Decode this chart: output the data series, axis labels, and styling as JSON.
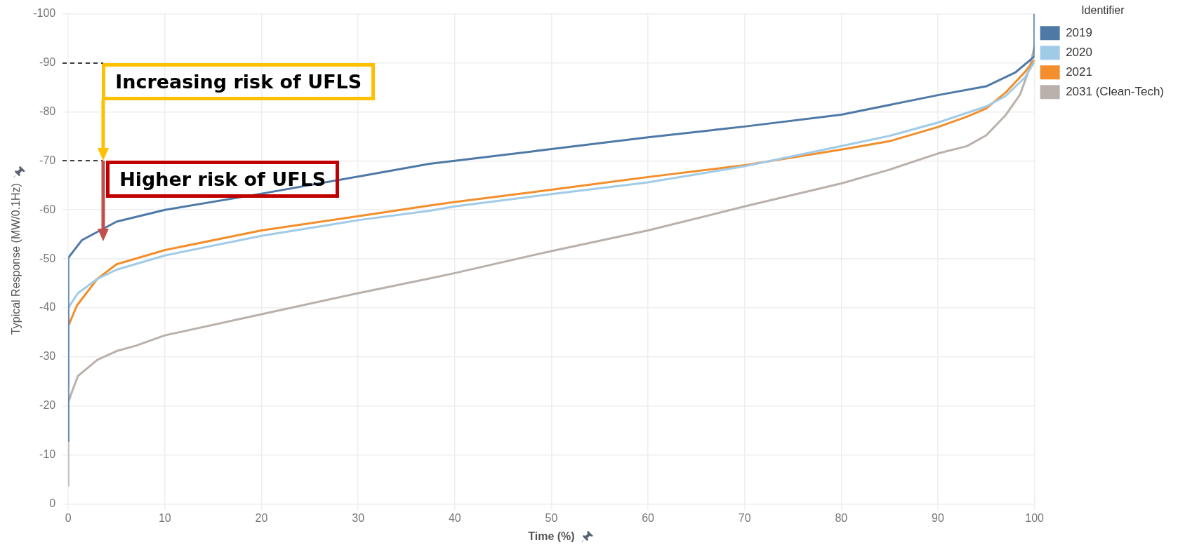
{
  "chart_data": {
    "type": "line",
    "xlabel": "Time (%)",
    "ylabel": "Typical Response (MW/0.1Hz)",
    "legend_title": "Identifier",
    "xlim": [
      0,
      100
    ],
    "ylim": [
      0,
      -100
    ],
    "xticks": [
      0,
      10,
      20,
      30,
      40,
      50,
      60,
      70,
      80,
      90,
      100
    ],
    "yticks": [
      0,
      -10,
      -20,
      -30,
      -40,
      -50,
      -60,
      -70,
      -80,
      -90,
      -100
    ],
    "grid": true,
    "legend": "top right",
    "marker": "none",
    "line_style": "solid",
    "series": [
      {
        "name": "2019",
        "color": "#4e79a7",
        "x": [
          0,
          0,
          1.4,
          5,
          10,
          20,
          30,
          37.4,
          40,
          50,
          60,
          70,
          80,
          90,
          95,
          98,
          100,
          100
        ],
        "values": [
          -12.7,
          -50.2,
          -53.8,
          -57.6,
          -60,
          -63.3,
          -66.8,
          -69.4,
          -70,
          -72.4,
          -74.8,
          -77,
          -79.4,
          -83.4,
          -85.2,
          -88,
          -91.3,
          -100
        ]
      },
      {
        "name": "2020",
        "color": "#a0cbe8",
        "x": [
          0,
          0,
          1,
          3,
          5,
          10,
          20,
          30,
          37.4,
          40,
          50,
          60,
          70,
          80,
          85,
          90,
          95,
          97,
          99,
          100
        ],
        "values": [
          -24,
          -40,
          -43,
          -45.9,
          -47.8,
          -50.7,
          -54.7,
          -57.9,
          -59.8,
          -60.7,
          -63.2,
          -65.6,
          -68.9,
          -73,
          -75.1,
          -77.8,
          -81.1,
          -83.2,
          -87,
          -90.2
        ]
      },
      {
        "name": "2021",
        "color": "#f28e2b",
        "x": [
          0,
          0.9,
          3,
          5,
          10,
          20,
          30,
          37.4,
          40,
          50,
          60,
          70,
          80,
          85,
          90,
          93,
          95,
          97,
          99,
          100
        ],
        "values": [
          -36.3,
          -40.5,
          -45.9,
          -48.9,
          -51.8,
          -55.8,
          -58.7,
          -60.9,
          -61.6,
          -64.1,
          -66.7,
          -69.1,
          -72.3,
          -74,
          -76.9,
          -79,
          -80.7,
          -83.9,
          -88.1,
          -90.6
        ]
      },
      {
        "name": "2031 (Clean-Tech)",
        "color": "#bab0ac",
        "x": [
          0,
          0,
          0.5,
          1,
          3,
          5,
          7,
          10,
          20,
          30,
          37.4,
          40,
          50,
          60,
          70,
          80,
          85,
          90,
          93,
          95,
          97,
          98.5,
          99.5,
          100
        ],
        "values": [
          -3.6,
          -20.8,
          -23.5,
          -26.1,
          -29.4,
          -31.2,
          -32.3,
          -34.4,
          -38.7,
          -43,
          -46,
          -47.1,
          -51.6,
          -55.8,
          -60.7,
          -65.4,
          -68.2,
          -71.5,
          -73,
          -75.2,
          -79.3,
          -83.5,
          -89,
          -93.4
        ]
      }
    ],
    "annotations": [
      "Increasing risk of UFLS",
      "Higher risk of UFLS"
    ]
  }
}
